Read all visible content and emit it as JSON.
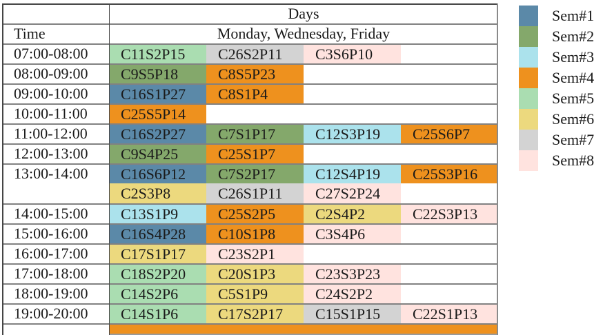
{
  "chart_data": {
    "type": "table",
    "header": {
      "days_label": "Days",
      "days_value": "Monday, Wednesday, Friday",
      "time_label": "Time"
    },
    "colors": {
      "sem1": "#5b89a8",
      "sem2": "#84a86b",
      "sem3": "#abe2ec",
      "sem4": "#ee911e",
      "sem5": "#aaddb1",
      "sem6": "#ecd97e",
      "sem7": "#d3d3d3",
      "sem8": "#ffe3df"
    },
    "rows": [
      {
        "time": "07:00-08:00",
        "merged_with_next": false,
        "cells": [
          {
            "text": "C11S2P15",
            "sem": "sem5"
          },
          {
            "text": "C26S2P11",
            "sem": "sem7"
          },
          {
            "text": "C3S6P10",
            "sem": "sem8"
          }
        ]
      },
      {
        "time": "08:00-09:00",
        "merged_with_next": false,
        "cells": [
          {
            "text": "C9S5P18",
            "sem": "sem2"
          },
          {
            "text": "C8S5P23",
            "sem": "sem4"
          }
        ]
      },
      {
        "time": "09:00-10:00",
        "merged_with_next": false,
        "cells": [
          {
            "text": "C16S1P27",
            "sem": "sem1"
          },
          {
            "text": "C8S1P4",
            "sem": "sem4"
          }
        ]
      },
      {
        "time": "10:00-11:00",
        "merged_with_next": false,
        "cells": [
          {
            "text": "C25S5P14",
            "sem": "sem4"
          }
        ]
      },
      {
        "time": "11:00-12:00",
        "merged_with_next": false,
        "cells": [
          {
            "text": "C16S2P27",
            "sem": "sem1"
          },
          {
            "text": "C7S1P17",
            "sem": "sem2"
          },
          {
            "text": "C12S3P19",
            "sem": "sem3"
          },
          {
            "text": "C25S6P7",
            "sem": "sem4"
          }
        ]
      },
      {
        "time": "12:00-13:00",
        "merged_with_next": false,
        "cells": [
          {
            "text": "C9S4P25",
            "sem": "sem2"
          },
          {
            "text": "C25S1P7",
            "sem": "sem4"
          }
        ]
      },
      {
        "time": "13:00-14:00",
        "merged_with_next": true,
        "cells": [
          {
            "text": "C16S6P12",
            "sem": "sem1"
          },
          {
            "text": "C7S2P17",
            "sem": "sem2"
          },
          {
            "text": "C12S4P19",
            "sem": "sem3"
          },
          {
            "text": "C25S3P16",
            "sem": "sem4"
          }
        ]
      },
      {
        "time": "",
        "merged_with_next": false,
        "cells": [
          {
            "text": "C2S3P8",
            "sem": "sem6"
          },
          {
            "text": "C26S1P11",
            "sem": "sem7"
          },
          {
            "text": "C27S2P24",
            "sem": "sem8"
          }
        ]
      },
      {
        "time": "14:00-15:00",
        "merged_with_next": false,
        "cells": [
          {
            "text": "C13S1P9",
            "sem": "sem3"
          },
          {
            "text": "C25S2P5",
            "sem": "sem4"
          },
          {
            "text": "C2S4P2",
            "sem": "sem6"
          },
          {
            "text": "C22S3P13",
            "sem": "sem8"
          }
        ]
      },
      {
        "time": "15:00-16:00",
        "merged_with_next": false,
        "cells": [
          {
            "text": "C16S4P28",
            "sem": "sem1"
          },
          {
            "text": "C10S1P8",
            "sem": "sem4"
          },
          {
            "text": "C3S4P6",
            "sem": "sem8"
          }
        ]
      },
      {
        "time": "16:00-17:00",
        "merged_with_next": false,
        "cells": [
          {
            "text": "C17S1P17",
            "sem": "sem6"
          },
          {
            "text": "C23S2P1",
            "sem": "sem8"
          }
        ]
      },
      {
        "time": "17:00-18:00",
        "merged_with_next": false,
        "cells": [
          {
            "text": "C18S2P20",
            "sem": "sem5"
          },
          {
            "text": "C20S1P3",
            "sem": "sem6"
          },
          {
            "text": "C23S3P23",
            "sem": "sem8"
          }
        ]
      },
      {
        "time": "18:00-19:00",
        "merged_with_next": false,
        "cells": [
          {
            "text": "C14S2P6",
            "sem": "sem5"
          },
          {
            "text": "C5S1P9",
            "sem": "sem6"
          },
          {
            "text": "C24S2P2",
            "sem": "sem8"
          }
        ]
      },
      {
        "time": "19:00-20:00",
        "merged_with_next": false,
        "cells": [
          {
            "text": "C14S1P6",
            "sem": "sem5"
          },
          {
            "text": "C17S2P17",
            "sem": "sem6"
          },
          {
            "text": "C15S1P15",
            "sem": "sem7"
          },
          {
            "text": "C22S1P13",
            "sem": "sem8"
          }
        ]
      }
    ],
    "partial_next_row": {
      "sem": "sem4"
    },
    "legend": [
      {
        "label": "Sem#1",
        "sem": "sem1"
      },
      {
        "label": "Sem#2",
        "sem": "sem2"
      },
      {
        "label": "Sem#3",
        "sem": "sem3"
      },
      {
        "label": "Sem#4",
        "sem": "sem4"
      },
      {
        "label": "Sem#5",
        "sem": "sem5"
      },
      {
        "label": "Sem#6",
        "sem": "sem6"
      },
      {
        "label": "Sem#7",
        "sem": "sem7"
      },
      {
        "label": "Sem#8",
        "sem": "sem8"
      }
    ],
    "legend_position": "right"
  }
}
